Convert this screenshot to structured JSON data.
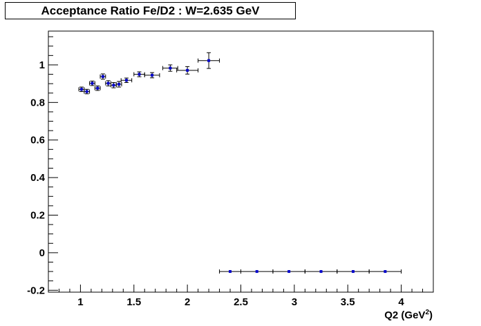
{
  "chart_data": {
    "type": "scatter",
    "title": "Acceptance Ratio Fe/D2 : W=2.635 GeV",
    "xlabel": "Q2 (GeV",
    "xlabel_sup": "2",
    "xlabel_close": ")",
    "ylabel": "",
    "xlim": [
      0.7,
      4.3
    ],
    "ylim": [
      -0.21,
      1.18
    ],
    "x_major_ticks": [
      1,
      1.5,
      2,
      2.5,
      3,
      3.5,
      4
    ],
    "x_tick_labels": [
      "1",
      "1.5",
      "2",
      "2.5",
      "3",
      "3.5",
      "4"
    ],
    "x_minor_step": 0.1,
    "y_major_ticks": [
      -0.2,
      0,
      0.2,
      0.4,
      0.6,
      0.8,
      1
    ],
    "y_tick_labels": [
      "-0.2",
      "0",
      "0.2",
      "0.4",
      "0.6",
      "0.8",
      "1"
    ],
    "y_minor_step": 0.05,
    "grid": false,
    "legend": "none",
    "marker_color": "#0000cc",
    "series": [
      {
        "points": [
          {
            "x": 1.01,
            "y": 0.87,
            "xerr": 0.025,
            "yerr": 0.012
          },
          {
            "x": 1.06,
            "y": 0.858,
            "xerr": 0.025,
            "yerr": 0.012
          },
          {
            "x": 1.11,
            "y": 0.902,
            "xerr": 0.025,
            "yerr": 0.012
          },
          {
            "x": 1.16,
            "y": 0.876,
            "xerr": 0.025,
            "yerr": 0.012
          },
          {
            "x": 1.21,
            "y": 0.938,
            "xerr": 0.025,
            "yerr": 0.014
          },
          {
            "x": 1.26,
            "y": 0.902,
            "xerr": 0.025,
            "yerr": 0.014
          },
          {
            "x": 1.31,
            "y": 0.892,
            "xerr": 0.025,
            "yerr": 0.014
          },
          {
            "x": 1.36,
            "y": 0.897,
            "xerr": 0.025,
            "yerr": 0.015
          },
          {
            "x": 1.43,
            "y": 0.918,
            "xerr": 0.05,
            "yerr": 0.012
          },
          {
            "x": 1.55,
            "y": 0.95,
            "xerr": 0.05,
            "yerr": 0.013
          },
          {
            "x": 1.67,
            "y": 0.945,
            "xerr": 0.07,
            "yerr": 0.014
          },
          {
            "x": 1.84,
            "y": 0.983,
            "xerr": 0.07,
            "yerr": 0.017
          },
          {
            "x": 2.0,
            "y": 0.971,
            "xerr": 0.1,
            "yerr": 0.02
          },
          {
            "x": 2.2,
            "y": 1.023,
            "xerr": 0.1,
            "yerr": 0.042
          },
          {
            "x": 2.4,
            "y": -0.1,
            "xerr": 0.1,
            "yerr": 0
          },
          {
            "x": 2.65,
            "y": -0.1,
            "xerr": 0.15,
            "yerr": 0
          },
          {
            "x": 2.95,
            "y": -0.1,
            "xerr": 0.15,
            "yerr": 0
          },
          {
            "x": 3.25,
            "y": -0.1,
            "xerr": 0.15,
            "yerr": 0
          },
          {
            "x": 3.55,
            "y": -0.1,
            "xerr": 0.15,
            "yerr": 0
          },
          {
            "x": 3.85,
            "y": -0.1,
            "xerr": 0.15,
            "yerr": 0
          }
        ]
      }
    ]
  }
}
